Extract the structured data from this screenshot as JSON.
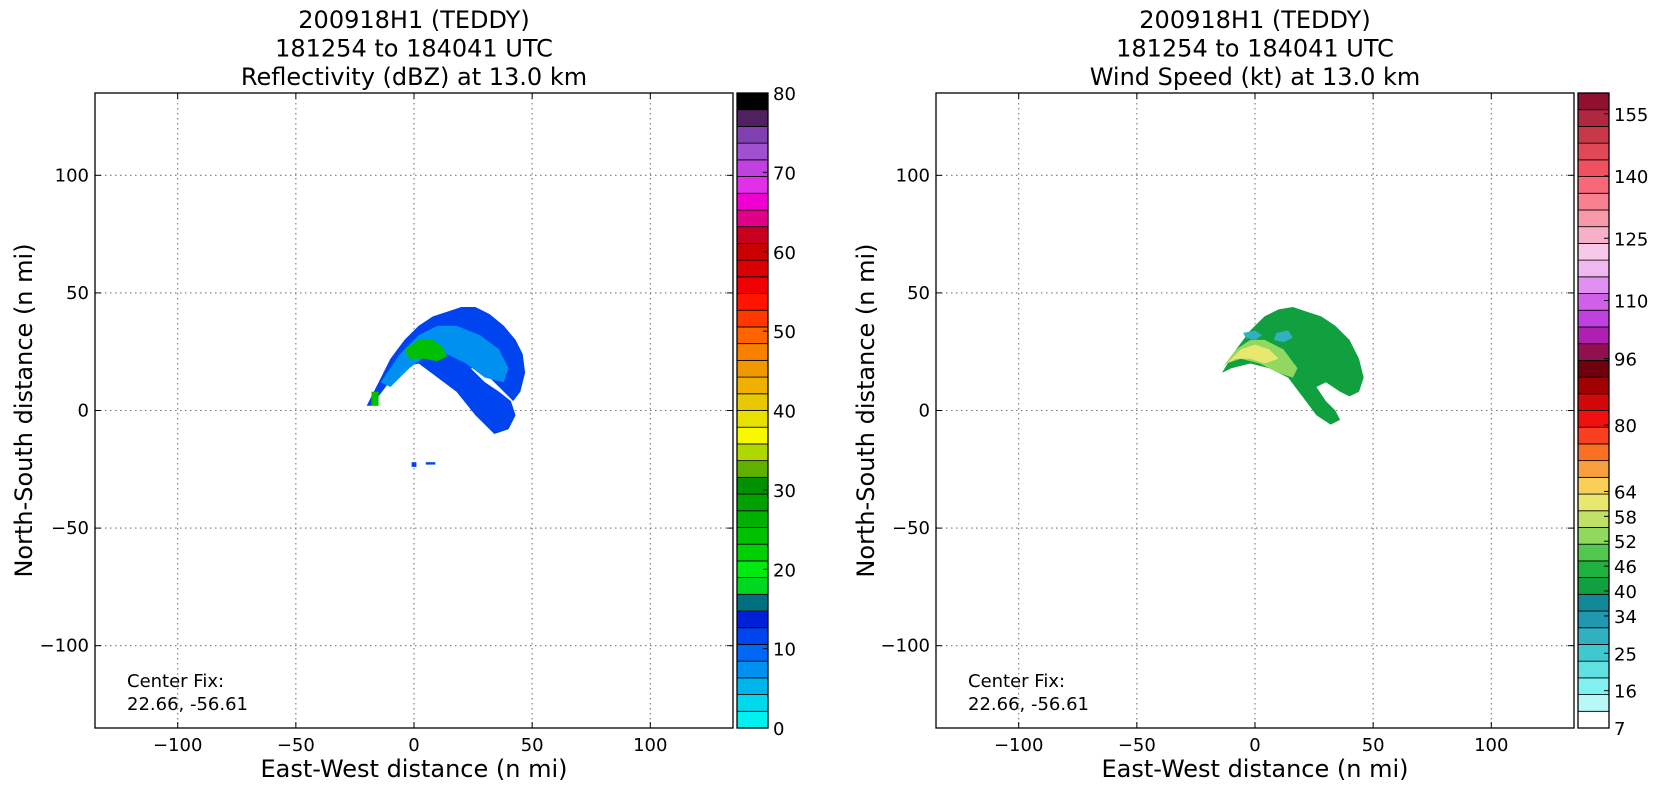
{
  "chart_data": [
    {
      "type": "heatmap",
      "title_lines": [
        "200918H1 (TEDDY)",
        "181254 to 184041 UTC",
        "Reflectivity (dBZ) at 13.0 km"
      ],
      "xlabel": "East-West distance (n mi)",
      "ylabel": "North-South distance (n mi)",
      "xlim": [
        -135,
        135
      ],
      "ylim": [
        -135,
        135
      ],
      "xticks": [
        -100,
        -50,
        0,
        50,
        100
      ],
      "yticks": [
        -100,
        -50,
        0,
        50,
        100
      ],
      "tick_labels": [
        "−100",
        "−50",
        "0",
        "50",
        "100"
      ],
      "grid": true,
      "annotation_lines": [
        "Center Fix:",
        "22.66, -56.61"
      ],
      "colorbar": {
        "min": 0,
        "max": 80,
        "tick_values": [
          0,
          10,
          20,
          30,
          40,
          50,
          60,
          70,
          80
        ],
        "tick_labels": [
          "0",
          "10",
          "20",
          "30",
          "40",
          "50",
          "60",
          "70",
          "80"
        ],
        "colors": [
          "#00f0f0",
          "#00d8ec",
          "#00b4ec",
          "#0090f0",
          "#0068f4",
          "#0044f0",
          "#0020d8",
          "#007080",
          "#00d820",
          "#00ea10",
          "#00d000",
          "#00c000",
          "#00b000",
          "#00a000",
          "#009000",
          "#60b000",
          "#b0d800",
          "#f8f800",
          "#e8e000",
          "#e8c800",
          "#f0b000",
          "#f09800",
          "#f88000",
          "#ff6400",
          "#ff3800",
          "#ff1400",
          "#f00000",
          "#d80000",
          "#c80000",
          "#c80020",
          "#e00088",
          "#f000d0",
          "#e030e8",
          "#c040e0",
          "#a050d0",
          "#8040b0",
          "#502060",
          "#000000"
        ]
      },
      "data_regions": [
        {
          "x": [
            -20,
            -15,
            -10,
            -4,
            2,
            8,
            14,
            20,
            26,
            32,
            38,
            43,
            46,
            47,
            45,
            42,
            38,
            32,
            28,
            24,
            30,
            36,
            41,
            43,
            40,
            34,
            26,
            18,
            10,
            2,
            -6,
            -12,
            -18
          ],
          "y": [
            2,
            12,
            22,
            30,
            36,
            40,
            42,
            44,
            44,
            41,
            36,
            30,
            24,
            16,
            8,
            4,
            8,
            14,
            18,
            18,
            12,
            8,
            4,
            -2,
            -8,
            -10,
            -2,
            8,
            14,
            20,
            18,
            10,
            2
          ],
          "value": 12
        },
        {
          "x": [
            -14,
            -6,
            2,
            10,
            18,
            28,
            36,
            40,
            38,
            30,
            22,
            14,
            6,
            -2,
            -10
          ],
          "y": [
            12,
            24,
            32,
            36,
            36,
            32,
            26,
            18,
            12,
            14,
            20,
            24,
            24,
            18,
            10
          ],
          "value": 7
        },
        {
          "x": [
            -4,
            2,
            8,
            12,
            14,
            10,
            4,
            -2
          ],
          "y": [
            26,
            30,
            30,
            27,
            23,
            21,
            22,
            22
          ],
          "value": 24
        },
        {
          "x": [
            -18,
            -15,
            -15,
            -18
          ],
          "y": [
            2,
            2,
            8,
            8
          ],
          "value": 24
        },
        {
          "x": [
            -1,
            1,
            1,
            -1
          ],
          "y": [
            -24,
            -24,
            -22,
            -22
          ],
          "value": 12
        },
        {
          "x": [
            5,
            9,
            9,
            5
          ],
          "y": [
            -23,
            -23,
            -22,
            -22
          ],
          "value": 12
        }
      ]
    },
    {
      "type": "heatmap",
      "title_lines": [
        "200918H1 (TEDDY)",
        "181254 to 184041 UTC",
        "Wind Speed (kt) at 13.0 km"
      ],
      "xlabel": "East-West distance (n mi)",
      "ylabel": "North-South distance (n mi)",
      "xlim": [
        -135,
        135
      ],
      "ylim": [
        -135,
        135
      ],
      "xticks": [
        -100,
        -50,
        0,
        50,
        100
      ],
      "yticks": [
        -100,
        -50,
        0,
        50,
        100
      ],
      "tick_labels": [
        "−100",
        "−50",
        "0",
        "50",
        "100"
      ],
      "grid": true,
      "annotation_lines": [
        "Center Fix:",
        "22.66, -56.61"
      ],
      "colorbar": {
        "min": 7,
        "max": 160,
        "tick_values": [
          7,
          16,
          25,
          34,
          40,
          46,
          52,
          58,
          64,
          80,
          96,
          110,
          125,
          140,
          155
        ],
        "tick_labels": [
          "7",
          "16",
          "25",
          "34",
          "40",
          "46",
          "52",
          "58",
          "64",
          "80",
          "96",
          "110",
          "125",
          "140",
          "155"
        ],
        "colors": [
          "#ffffff",
          "#b8f8f8",
          "#80f0f0",
          "#60e0e0",
          "#40c8d0",
          "#30b0c0",
          "#2098b0",
          "#108898",
          "#10a040",
          "#20b040",
          "#50c850",
          "#90d860",
          "#c0e068",
          "#e8e870",
          "#f8d058",
          "#f8a040",
          "#f87020",
          "#f84020",
          "#f01010",
          "#d00808",
          "#a00000",
          "#700010",
          "#901050",
          "#b020b0",
          "#c040e0",
          "#d060e8",
          "#e090f0",
          "#f0b8f0",
          "#f8c8e8",
          "#f8b0c8",
          "#f898a8",
          "#f88090",
          "#f86878",
          "#f05060",
          "#e04858",
          "#c83848",
          "#b02840",
          "#901030"
        ]
      },
      "data_regions": [
        {
          "x": [
            -14,
            -8,
            -2,
            4,
            10,
            16,
            22,
            28,
            34,
            40,
            44,
            46,
            44,
            40,
            36,
            30,
            26,
            30,
            34,
            36,
            32,
            26,
            20,
            14,
            6,
            -2,
            -10,
            -14
          ],
          "y": [
            16,
            26,
            34,
            40,
            43,
            44,
            42,
            40,
            36,
            30,
            22,
            14,
            8,
            6,
            8,
            12,
            10,
            4,
            0,
            -4,
            -6,
            -2,
            6,
            14,
            18,
            20,
            18,
            16
          ],
          "value": 42
        },
        {
          "x": [
            -14,
            -8,
            -2,
            4,
            12,
            18,
            16,
            10,
            2,
            -6,
            -12
          ],
          "y": [
            18,
            26,
            30,
            30,
            26,
            18,
            14,
            16,
            20,
            22,
            20
          ],
          "value": 52
        },
        {
          "x": [
            -12,
            -6,
            0,
            6,
            10,
            4,
            -2,
            -8
          ],
          "y": [
            20,
            26,
            28,
            26,
            22,
            20,
            22,
            22
          ],
          "value": 62
        },
        {
          "x": [
            -5,
            0,
            3,
            0,
            -4
          ],
          "y": [
            33,
            34,
            32,
            30,
            31
          ],
          "value": 28
        },
        {
          "x": [
            9,
            14,
            16,
            12,
            8
          ],
          "y": [
            33,
            34,
            31,
            29,
            30
          ],
          "value": 28
        }
      ]
    }
  ]
}
